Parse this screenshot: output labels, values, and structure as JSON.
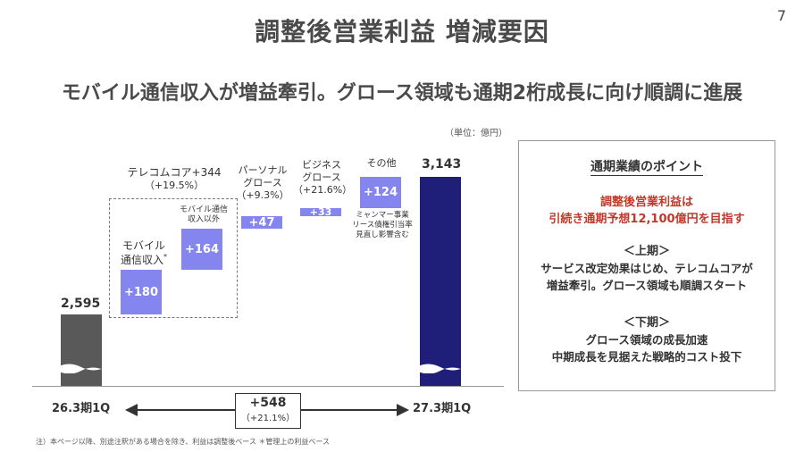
{
  "header": {
    "title": "調整後営業利益 増減要因",
    "page_number": "7",
    "subtitle": "モバイル通信収入が増益牽引。グロース領域も通期2桁成長に向け順調に進展"
  },
  "unit_label": "（単位：億円）",
  "chart_data": {
    "type": "bar",
    "subtype": "waterfall",
    "categories": [
      "26.3期1Q",
      "モバイル通信収入",
      "モバイル通信収入以外",
      "パーソナルグロース",
      "ビジネスグロース",
      "その他",
      "27.3期1Q"
    ],
    "start": {
      "label": "26.3期1Q",
      "value": 2595,
      "value_label": "2,595"
    },
    "end": {
      "label": "27.3期1Q",
      "value": 3143,
      "value_label": "3,143"
    },
    "steps": [
      {
        "name": "モバイル通信収入",
        "value": 180,
        "value_label": "+180"
      },
      {
        "name": "モバイル通信収入以外",
        "value": 164,
        "value_label": "+164"
      },
      {
        "name": "パーソナルグロース",
        "value": 47,
        "value_label": "+47"
      },
      {
        "name": "ビジネスグロース",
        "value": 33,
        "value_label": "+33"
      },
      {
        "name": "その他",
        "value": 124,
        "value_label": "+124"
      }
    ],
    "total_change": {
      "value": 548,
      "value_label": "+548",
      "pct_label": "（+21.1%）"
    },
    "axis_break": true,
    "colors": {
      "base": "#595959",
      "end": "#1f1f7a",
      "increase": "#8585ef"
    }
  },
  "labels": {
    "telecom_core": "テレコムコア+344",
    "telecom_core_pct": "（+19.5%）",
    "mobile_line1": "モバイル",
    "mobile_line2": "通信収入",
    "mobile_note": "*",
    "mobile_other_line1": "モバイル通信",
    "mobile_other_line2": "収入以外",
    "personal_line1": "パーソナル",
    "personal_line2": "グロース",
    "personal_pct": "（+9.3%）",
    "business_line1": "ビジネス",
    "business_line2": "グロース",
    "business_pct": "（+21.6%）",
    "other": "その他",
    "other_note_1": "ミャンマー事業",
    "other_note_2": "リース債権引当率",
    "other_note_3": "見直し影響含む"
  },
  "panel": {
    "title": "通期業績のポイント",
    "highlight_1": "調整後営業利益は",
    "highlight_2": "引続き通期予想12,100億円を目指す",
    "h1_head": "＜上期＞",
    "h1_body_1": "サービス改定効果はじめ、テレコムコアが",
    "h1_body_2": "増益牽引。グロース領域も順調スタート",
    "h2_head": "＜下期＞",
    "h2_body_1": "グロース領域の成長加速",
    "h2_body_2": "中期成長を見据えた戦略的コスト投下"
  },
  "footnote": "注）本ページ以降、別途注釈がある場合を除き、利益は調整後ベース ＊管理上の利益ベース"
}
